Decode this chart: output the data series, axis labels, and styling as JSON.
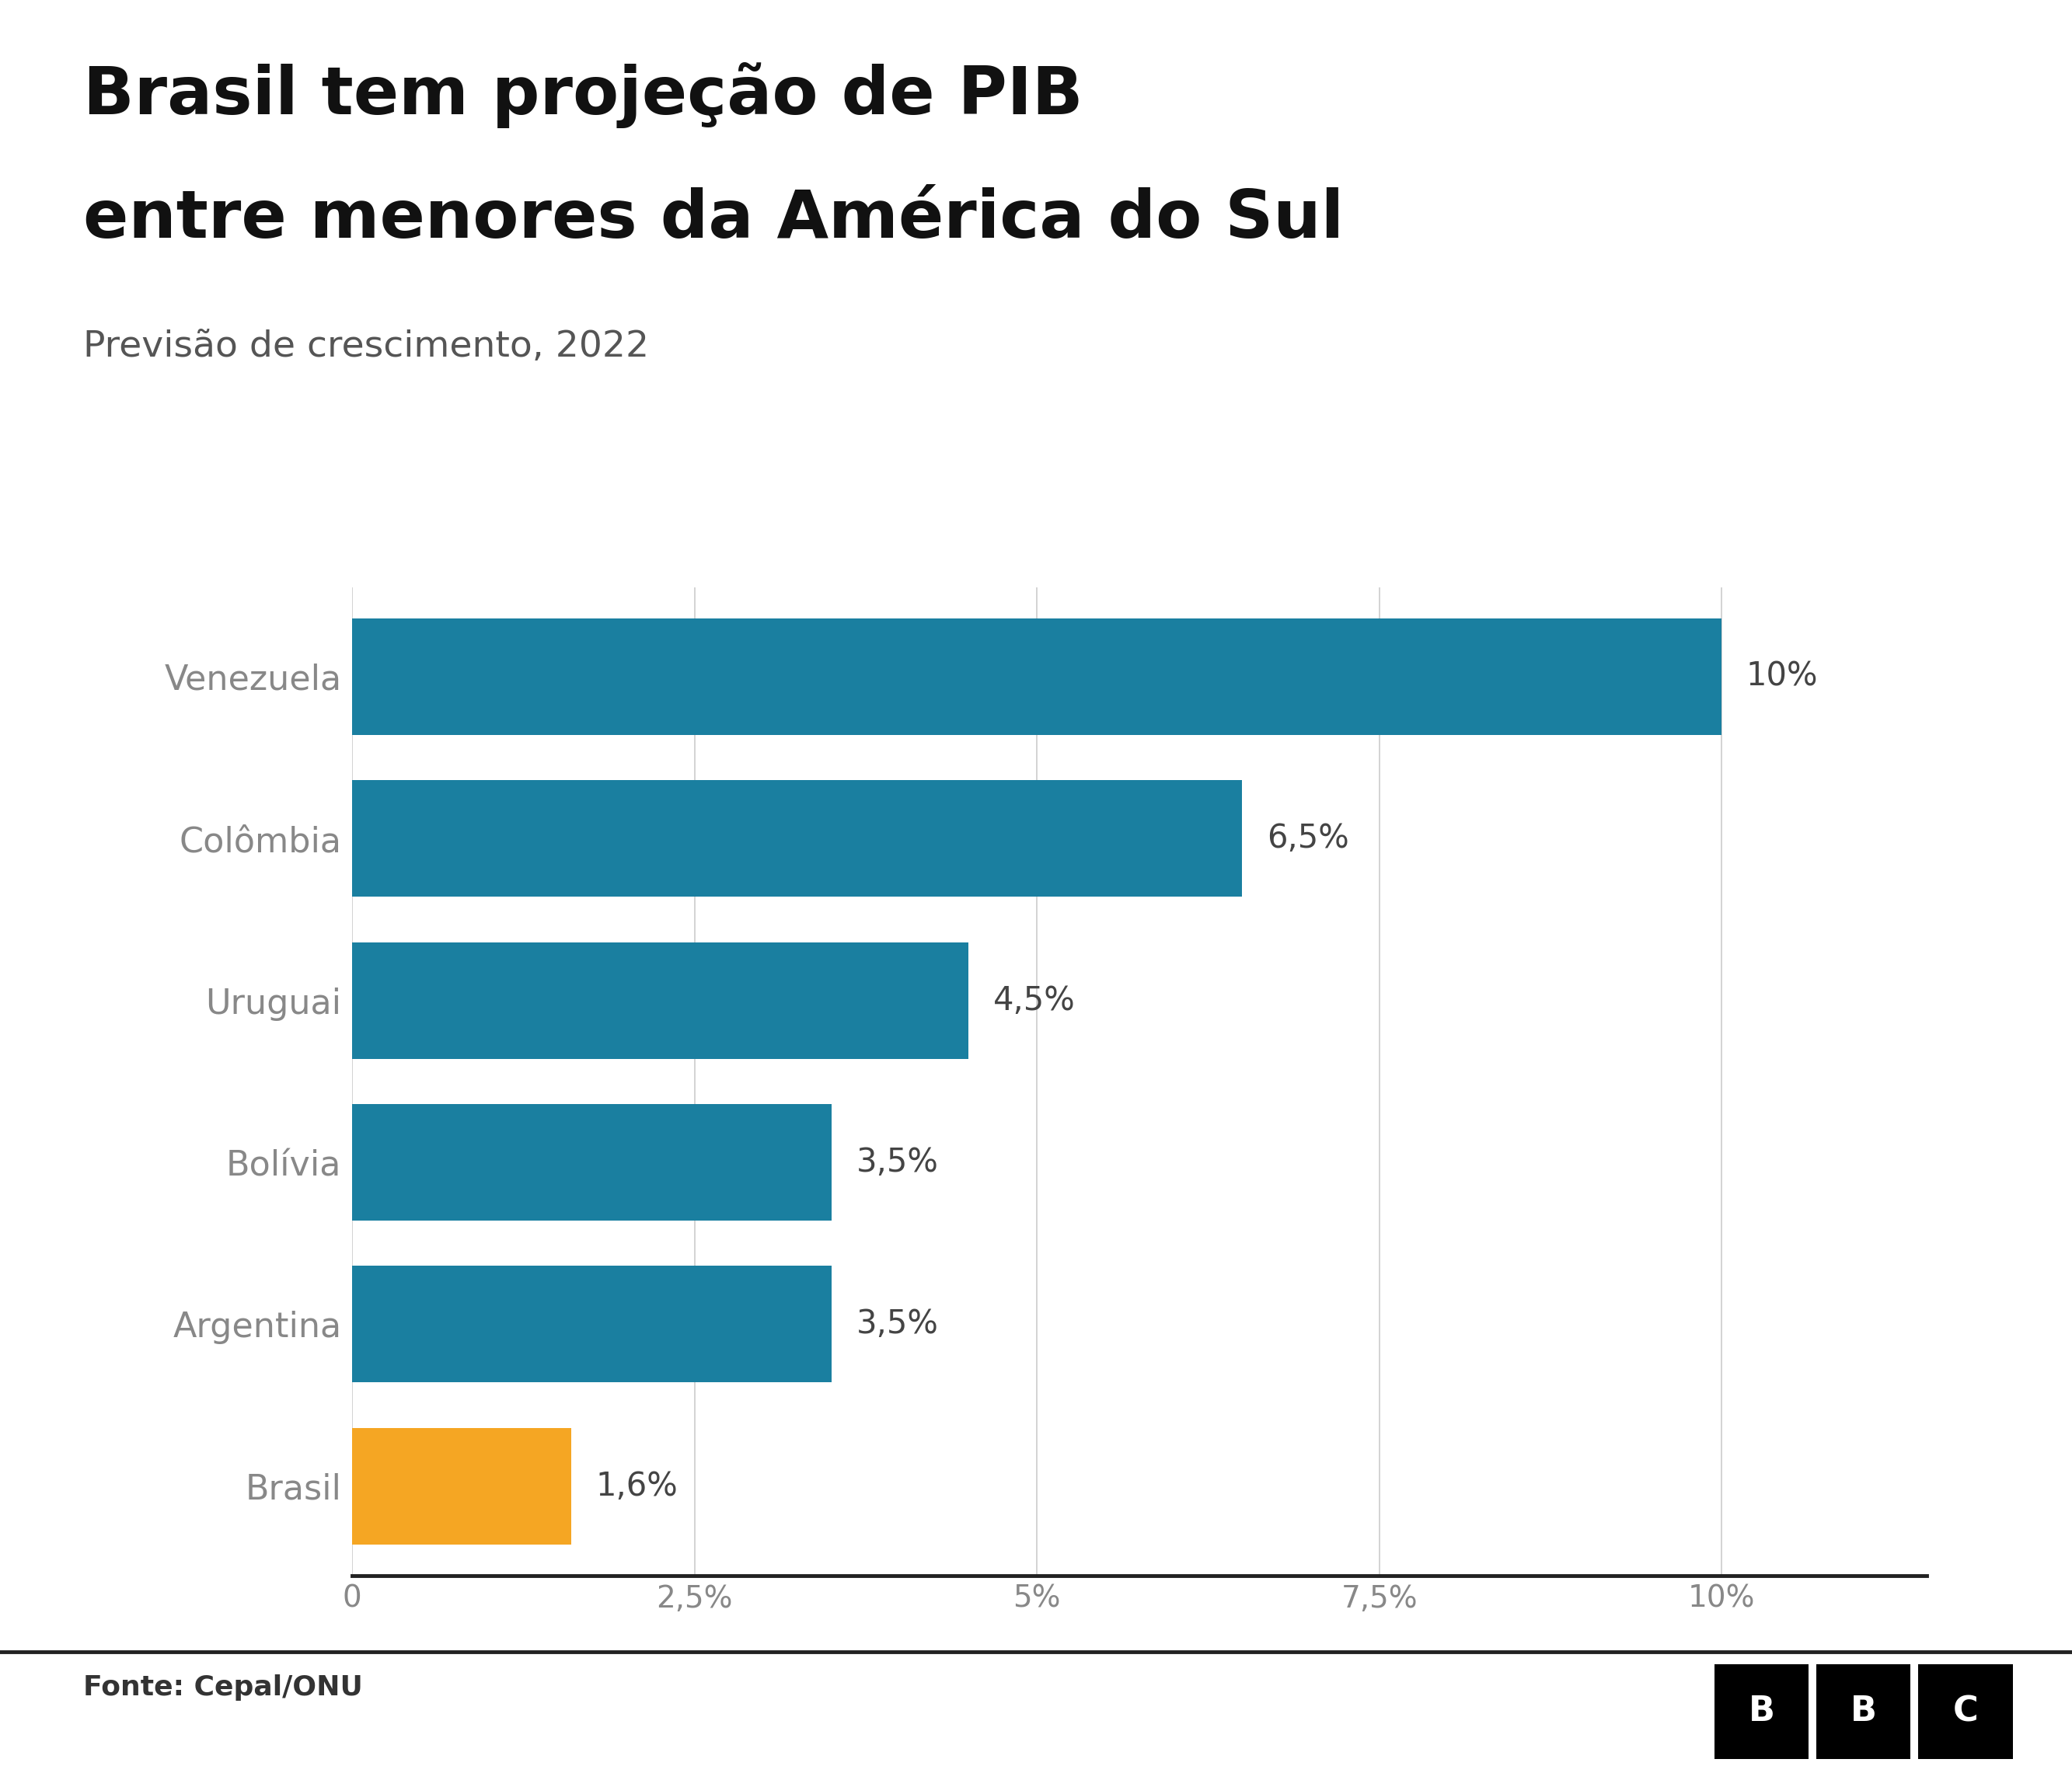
{
  "title_line1": "Brasil tem projeção de PIB",
  "title_line2": "entre menores da América do Sul",
  "subtitle": "Previsão de crescimento, 2022",
  "categories": [
    "Brasil",
    "Argentina",
    "Bolívia",
    "Uruguai",
    "Colômbia",
    "Venezuela"
  ],
  "values": [
    1.6,
    3.5,
    3.5,
    4.5,
    6.5,
    10.0
  ],
  "labels": [
    "1,6%",
    "3,5%",
    "3,5%",
    "4,5%",
    "6,5%",
    "10%"
  ],
  "bar_colors": [
    "#f5a623",
    "#1a7fa0",
    "#1a7fa0",
    "#1a7fa0",
    "#1a7fa0",
    "#1a7fa0"
  ],
  "xlim": [
    0,
    11.5
  ],
  "xticks": [
    0,
    2.5,
    5.0,
    7.5,
    10.0
  ],
  "xtick_labels": [
    "0",
    "2,5%",
    "5%",
    "7,5%",
    "10%"
  ],
  "fonte": "Fonte: Cepal/ONU",
  "background_color": "#ffffff",
  "bar_label_color": "#444444",
  "ytick_color": "#888888",
  "xtick_color": "#888888",
  "grid_color": "#cccccc",
  "title_color": "#111111",
  "subtitle_color": "#555555",
  "fonte_color": "#333333",
  "spine_color": "#222222",
  "bbc_bg": "#000000",
  "bbc_fg": "#ffffff"
}
